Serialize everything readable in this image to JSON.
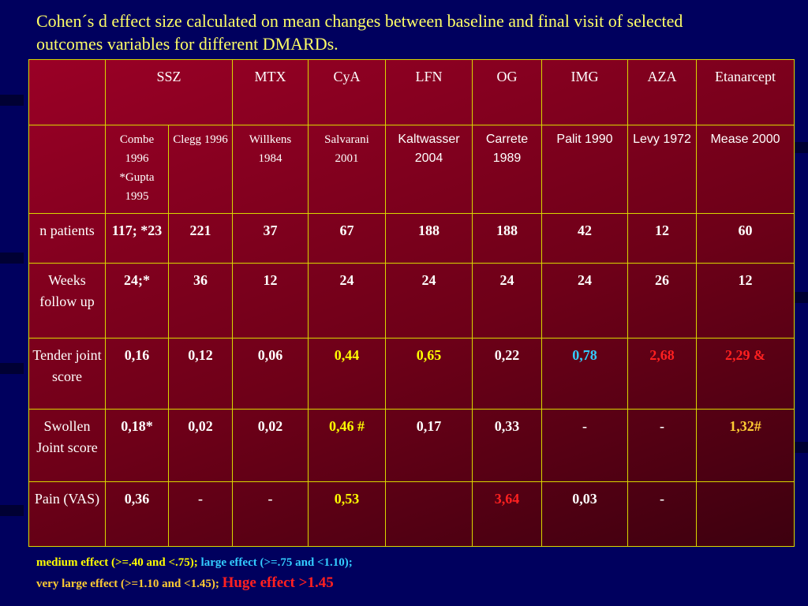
{
  "title": "Cohen´s d effect size calculated on mean changes between baseline and final visit of selected outcomes variables for different DMARDs.",
  "table": {
    "header": [
      "SSZ",
      "MTX",
      "CyA",
      "LFN",
      "OG",
      "IMG",
      "AZA",
      "Etanarcept"
    ],
    "studies": [
      "Combe 1996 *Gupta 1995",
      "Clegg 1996",
      "Willkens 1984",
      "Salvarani 2001",
      "Kaltwasser 2004",
      "Carrete 1989",
      "Palit 1990",
      "Levy 1972",
      "Mease 2000"
    ],
    "rows": [
      {
        "label": "n patients",
        "cells": [
          "117; *23",
          "221",
          "37",
          "67",
          "188",
          "188",
          "42",
          "12",
          "60"
        ]
      },
      {
        "label": "Weeks follow up",
        "cells": [
          "24;*",
          "36",
          "12",
          "24",
          "24",
          "24",
          "24",
          "26",
          "12"
        ]
      },
      {
        "label": "Tender joint score",
        "cells": [
          "0,16",
          "0,12",
          "0,06",
          {
            "text": "0,44",
            "color": "#ffff00"
          },
          {
            "text": "0,65",
            "color": "#ffff00"
          },
          "0,22",
          {
            "text": "0,78",
            "color": "#33ccff"
          },
          {
            "text": "2,68",
            "color": "#ff2020"
          },
          {
            "text": "2,29 &",
            "color": "#ff2020"
          }
        ]
      },
      {
        "label": "Swollen Joint score",
        "cells": [
          "0,18*",
          "0,02",
          "0,02",
          {
            "text": "0,46 #",
            "color": "#ffff00"
          },
          "0,17",
          "0,33",
          "-",
          "-",
          {
            "text": "1,32#",
            "color": "#ffcc33"
          }
        ]
      },
      {
        "label": "Pain (VAS)",
        "cells": [
          "0,36",
          "-",
          "-",
          {
            "text": "0,53",
            "color": "#ffff00"
          },
          null,
          {
            "text": "3,64",
            "color": "#ff2020"
          },
          "0,03",
          "-",
          null
        ]
      }
    ]
  },
  "legend": [
    [
      {
        "text": "medium effect (>=.40 and <.75);",
        "color": "#ffff00"
      },
      {
        "text": "large effect (>=.75 and <1.10);",
        "color": "#33ccff"
      }
    ],
    [
      {
        "text": "very large effect (>=1.10 and <1.45);",
        "color": "#ffcc33"
      },
      {
        "text": "Huge effect >1.45",
        "color": "#ff2020"
      }
    ]
  ]
}
